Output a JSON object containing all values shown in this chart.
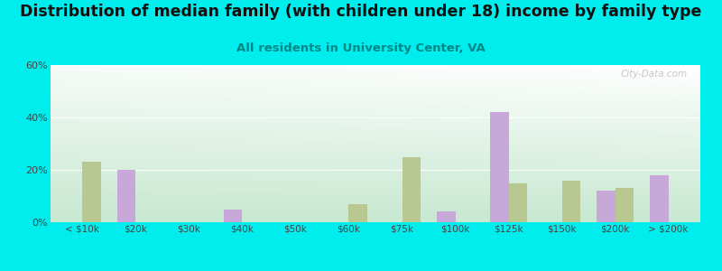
{
  "title": "Distribution of median family (with children under 18) income by family type",
  "subtitle": "All residents in University Center, VA",
  "categories": [
    "< $10k",
    "$20k",
    "$30k",
    "$40k",
    "$50k",
    "$60k",
    "$75k",
    "$100k",
    "$125k",
    "$150k",
    "$200k",
    "> $200k"
  ],
  "married_couple": [
    0,
    20,
    0,
    5,
    0,
    0,
    0,
    4,
    42,
    0,
    12,
    18
  ],
  "female_no_husband": [
    23,
    0,
    0,
    0,
    0,
    7,
    25,
    0,
    15,
    16,
    13,
    0
  ],
  "married_color": "#c8a8d8",
  "female_color": "#b8c890",
  "bg_color": "#00eded",
  "chart_bg_topleft": "#d0ece0",
  "chart_bg_topright": "#e8f4ee",
  "chart_bg_bottom": "#c8e8d0",
  "ylim": [
    0,
    60
  ],
  "yticks": [
    0,
    20,
    40,
    60
  ],
  "ytick_labels": [
    "0%",
    "20%",
    "40%",
    "60%"
  ],
  "bar_width": 0.35,
  "title_fontsize": 12.5,
  "subtitle_fontsize": 9.5,
  "watermark": "City-Data.com"
}
